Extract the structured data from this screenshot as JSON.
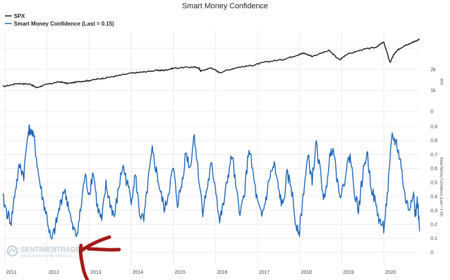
{
  "chart_data": {
    "type": "line",
    "title": "Smart Money Confidence",
    "legend": [
      "SPX",
      "Smart Money Confidence (Last = 0.15)"
    ],
    "legend_position": "top-left",
    "grid": true,
    "colors": {
      "spx": "#1a1a1a",
      "smc": "#1f66b8",
      "annotation": "#a51919"
    },
    "x_ticks": [
      "2011",
      "2012",
      "2013",
      "2014",
      "2015",
      "2016",
      "2017",
      "2018",
      "2019",
      "2020"
    ],
    "x_range": [
      2010.95,
      2020.85
    ],
    "top_panel": {
      "series": "SPX",
      "axis_label": "SPX",
      "y_ticks": [
        "2k",
        "1k",
        "0"
      ],
      "y_tick_values": [
        2000,
        1000,
        0
      ],
      "ylim": [
        0,
        3400
      ],
      "x": [
        2010.95,
        2011.3,
        2011.6,
        2011.75,
        2012.0,
        2012.3,
        2012.5,
        2012.8,
        2013.0,
        2013.3,
        2013.6,
        2014.0,
        2014.3,
        2014.6,
        2014.8,
        2015.0,
        2015.4,
        2015.6,
        2015.65,
        2015.9,
        2016.1,
        2016.5,
        2016.9,
        2017.2,
        2017.6,
        2017.95,
        2018.1,
        2018.3,
        2018.7,
        2018.95,
        2019.1,
        2019.5,
        2019.8,
        2020.0,
        2020.15,
        2020.25,
        2020.35,
        2020.5,
        2020.7,
        2020.85
      ],
      "y": [
        1180,
        1330,
        1300,
        1130,
        1290,
        1410,
        1330,
        1430,
        1470,
        1570,
        1670,
        1820,
        1880,
        1950,
        1960,
        2060,
        2110,
        2090,
        1920,
        2080,
        1850,
        2090,
        2200,
        2360,
        2470,
        2690,
        2780,
        2630,
        2900,
        2450,
        2700,
        2950,
        3050,
        3300,
        2330,
        2750,
        2950,
        3150,
        3300,
        3450
      ]
    },
    "bottom_panel": {
      "series": "Smart Money Confidence",
      "axis_label": "Smart Money Confidence (Last = 0.15)",
      "y_ticks": [
        "0.9",
        "0.8",
        "0.7",
        "0.6",
        "0.5",
        "0.4",
        "0.3",
        "0.2",
        "0.1",
        "0"
      ],
      "y_tick_values": [
        0.9,
        0.8,
        0.7,
        0.6,
        0.5,
        0.4,
        0.3,
        0.2,
        0.1,
        0
      ],
      "ylim": [
        -0.05,
        0.9
      ],
      "x": [
        2010.95,
        2011.05,
        2011.15,
        2011.25,
        2011.35,
        2011.45,
        2011.55,
        2011.6,
        2011.7,
        2011.8,
        2011.9,
        2012.0,
        2012.1,
        2012.2,
        2012.3,
        2012.4,
        2012.5,
        2012.6,
        2012.7,
        2012.8,
        2012.9,
        2013.0,
        2013.1,
        2013.2,
        2013.3,
        2013.4,
        2013.5,
        2013.6,
        2013.7,
        2013.8,
        2013.9,
        2014.0,
        2014.1,
        2014.2,
        2014.3,
        2014.4,
        2014.5,
        2014.6,
        2014.7,
        2014.8,
        2014.9,
        2015.0,
        2015.1,
        2015.2,
        2015.3,
        2015.4,
        2015.5,
        2015.6,
        2015.7,
        2015.8,
        2015.9,
        2016.0,
        2016.1,
        2016.2,
        2016.3,
        2016.4,
        2016.5,
        2016.6,
        2016.7,
        2016.8,
        2016.9,
        2017.0,
        2017.1,
        2017.2,
        2017.3,
        2017.4,
        2017.5,
        2017.6,
        2017.7,
        2017.8,
        2017.9,
        2018.0,
        2018.1,
        2018.2,
        2018.3,
        2018.4,
        2018.5,
        2018.6,
        2018.7,
        2018.8,
        2018.9,
        2019.0,
        2019.1,
        2019.2,
        2019.3,
        2019.4,
        2019.5,
        2019.6,
        2019.7,
        2019.8,
        2019.9,
        2020.0,
        2020.1,
        2020.2,
        2020.3,
        2020.4,
        2020.5,
        2020.6,
        2020.7,
        2020.75,
        2020.8,
        2020.85
      ],
      "y": [
        0.39,
        0.28,
        0.22,
        0.45,
        0.62,
        0.55,
        0.87,
        0.88,
        0.8,
        0.55,
        0.38,
        0.25,
        0.07,
        0.18,
        0.32,
        0.45,
        0.35,
        0.18,
        0.12,
        0.3,
        0.55,
        0.42,
        0.58,
        0.32,
        0.22,
        0.48,
        0.35,
        0.25,
        0.45,
        0.62,
        0.5,
        0.38,
        0.55,
        0.28,
        0.22,
        0.5,
        0.72,
        0.58,
        0.42,
        0.3,
        0.45,
        0.6,
        0.35,
        0.48,
        0.72,
        0.6,
        0.85,
        0.55,
        0.3,
        0.45,
        0.62,
        0.48,
        0.22,
        0.35,
        0.55,
        0.7,
        0.42,
        0.28,
        0.45,
        0.75,
        0.55,
        0.35,
        0.25,
        0.38,
        0.55,
        0.62,
        0.45,
        0.32,
        0.55,
        0.48,
        0.22,
        0.15,
        0.45,
        0.68,
        0.52,
        0.78,
        0.55,
        0.35,
        0.65,
        0.78,
        0.5,
        0.4,
        0.58,
        0.7,
        0.45,
        0.3,
        0.55,
        0.72,
        0.48,
        0.35,
        0.22,
        0.18,
        0.45,
        0.83,
        0.78,
        0.65,
        0.4,
        0.3,
        0.45,
        0.25,
        0.38,
        0.15
      ]
    }
  },
  "watermark": {
    "name": "SENTIMENTRADER",
    "tagline": "WISDOM FROM THE MARKETS"
  }
}
